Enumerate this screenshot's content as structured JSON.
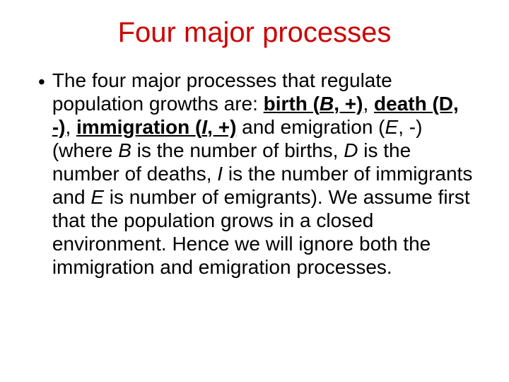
{
  "slide": {
    "title": "Four major processes",
    "title_color": "#cc0000",
    "bullet_char": "•",
    "body_color": "#000000",
    "background_color": "#ffffff",
    "text": {
      "p1a": "The four major processes that regulate population growths are: ",
      "birth_label": "birth (",
      "birth_var": "B",
      "birth_suffix": ", +)",
      "sep1": ", ",
      "death_label": "death (D, -)",
      "sep2": ", ",
      "immig_label": "immigration (",
      "immig_var": "I",
      "immig_suffix": ", +)",
      "and": " and emigration (",
      "emig_var": "E",
      "emig_suffix": ", -) (where ",
      "B": "B",
      "p2": " is the number of births, ",
      "D": "D",
      "p3": " is the number of deaths, ",
      "I": "I",
      "p4": " is the number of immigrants and ",
      "E": "E",
      "p5": " is number of emigrants).  We assume first that the population grows in a closed environment. Hence we will ignore both the immigration and emigration processes."
    }
  }
}
